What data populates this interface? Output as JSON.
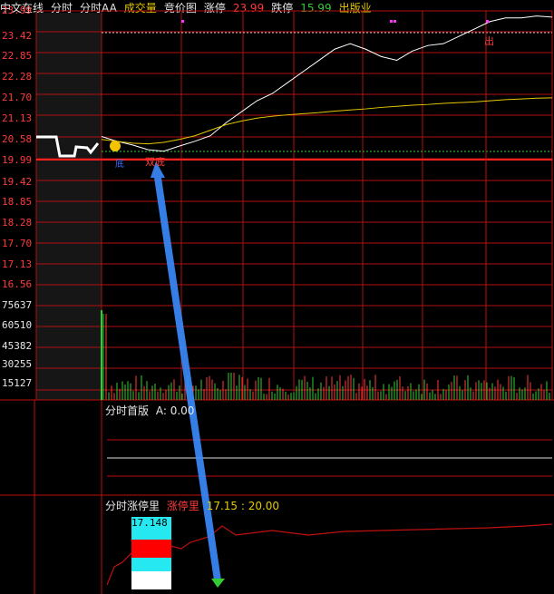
{
  "toolbar": {
    "items": [
      {
        "label": "中文在线",
        "color": "#e6e6e6"
      },
      {
        "label": "分时",
        "color": "#e6e6e6"
      },
      {
        "label": "分时AA",
        "color": "#e6e6e6"
      },
      {
        "label": "成交量",
        "color": "#e6c800"
      },
      {
        "label": "竞价图",
        "color": "#e6e6e6"
      },
      {
        "label": "涨停",
        "color": "#e6e6e6"
      },
      {
        "label": "23.99",
        "color": "#ff3b3b"
      },
      {
        "label": "跌停",
        "color": "#e6e6e6"
      },
      {
        "label": "15.99",
        "color": "#33cc33"
      },
      {
        "label": "出版业",
        "color": "#e6c800"
      }
    ],
    "close_glyph": "×"
  },
  "price_axis": [
    "23.99",
    "23.42",
    "22.85",
    "22.28",
    "21.70",
    "21.13",
    "20.58",
    "19.99",
    "19.42",
    "18.85",
    "18.28",
    "17.70",
    "17.13",
    "16.56"
  ],
  "volume_axis": [
    "75637",
    "60510",
    "45382",
    "30255",
    "15127"
  ],
  "annotations": {
    "low_marker": "双底",
    "high_marker": "出",
    "left_marker": "底"
  },
  "panel2": {
    "title": "分时首版",
    "value": "A: 0.00"
  },
  "panel3": {
    "title": "分时涨停里",
    "series_label": "涨停里",
    "range": "17.15 : 20.00",
    "legend_value": "17.148"
  },
  "colors": {
    "up": "#ff3b3b",
    "down": "#33cc33",
    "price_line": "#ffffff",
    "avg_line": "#e6c800",
    "grid": "#b01010"
  },
  "chart_data": {
    "type": "line",
    "title": "",
    "ylim": [
      15.99,
      23.99
    ],
    "y_ticks": [
      23.99,
      23.42,
      22.85,
      22.28,
      21.7,
      21.13,
      20.58,
      19.99,
      19.42,
      18.85,
      18.28,
      17.7,
      17.13,
      16.56
    ],
    "series": [
      {
        "values": [
          20.58,
          20.45,
          20.35,
          20.22,
          20.18,
          20.32,
          20.45,
          20.6,
          20.95,
          21.25,
          21.55,
          21.75,
          22.05,
          22.35,
          22.65,
          22.95,
          23.1,
          22.95,
          22.75,
          22.65,
          22.9,
          23.05,
          23.1,
          23.3,
          23.5,
          23.7,
          23.8,
          23.8,
          23.85,
          23.82
        ]
      },
      {
        "values": [
          20.5,
          20.45,
          20.4,
          20.38,
          20.42,
          20.5,
          20.6,
          20.75,
          20.9,
          21.0,
          21.08,
          21.13,
          21.17,
          21.2,
          21.23,
          21.27,
          21.3,
          21.33,
          21.37,
          21.4,
          21.43,
          21.45,
          21.48,
          21.5,
          21.52,
          21.55,
          21.58,
          21.6,
          21.62,
          21.63
        ]
      }
    ]
  }
}
